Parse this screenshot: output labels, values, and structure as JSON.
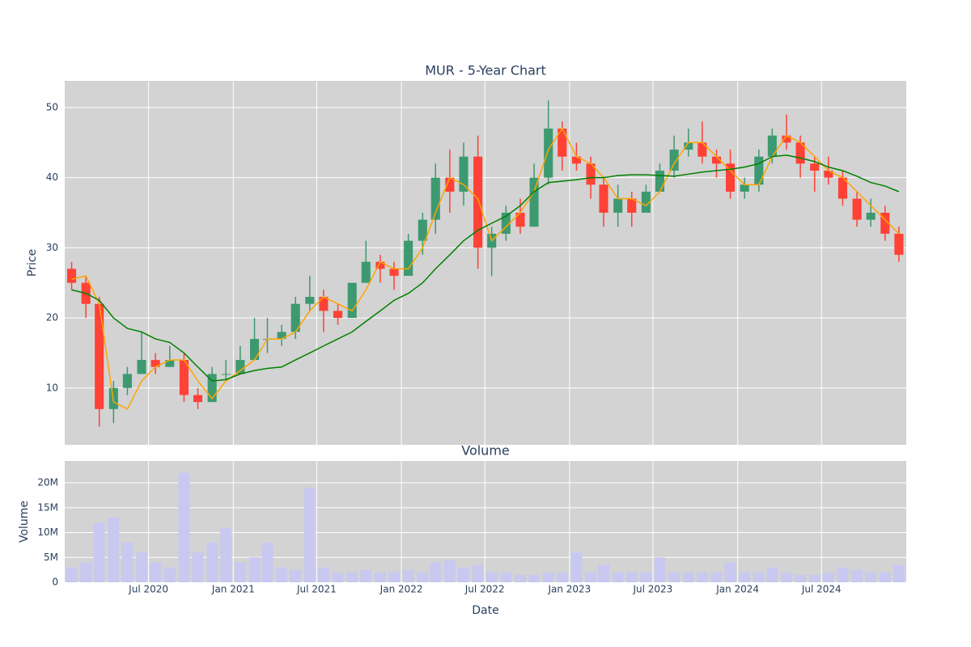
{
  "chart_data": [
    {
      "type": "candlestick",
      "title": "MUR - 5-Year Chart",
      "ylabel": "Price",
      "x": [
        "2020-01",
        "2020-02",
        "2020-03",
        "2020-04",
        "2020-05",
        "2020-06",
        "2020-07",
        "2020-08",
        "2020-09",
        "2020-10",
        "2020-11",
        "2020-12",
        "2021-01",
        "2021-02",
        "2021-03",
        "2021-04",
        "2021-05",
        "2021-06",
        "2021-07",
        "2021-08",
        "2021-09",
        "2021-10",
        "2021-11",
        "2021-12",
        "2022-01",
        "2022-02",
        "2022-03",
        "2022-04",
        "2022-05",
        "2022-06",
        "2022-07",
        "2022-08",
        "2022-09",
        "2022-10",
        "2022-11",
        "2022-12",
        "2023-01",
        "2023-02",
        "2023-03",
        "2023-04",
        "2023-05",
        "2023-06",
        "2023-07",
        "2023-08",
        "2023-09",
        "2023-10",
        "2023-11",
        "2023-12",
        "2024-01",
        "2024-02",
        "2024-03",
        "2024-04",
        "2024-05",
        "2024-06",
        "2024-07",
        "2024-08",
        "2024-09",
        "2024-10",
        "2024-11",
        "2024-12"
      ],
      "open": [
        27,
        25,
        22,
        7,
        10,
        12,
        14,
        13,
        14,
        9,
        8,
        12,
        12,
        14,
        17,
        17,
        18,
        22,
        23,
        21,
        20,
        25,
        28,
        27,
        26,
        31,
        34,
        40,
        38,
        43,
        30,
        32,
        35,
        33,
        40,
        47,
        43,
        42,
        39,
        35,
        37,
        35,
        38,
        41,
        44,
        45,
        43,
        42,
        38,
        39,
        43,
        46,
        45,
        42,
        41,
        40,
        37,
        34,
        35,
        32
      ],
      "high": [
        28,
        26,
        23,
        11,
        13,
        18,
        15,
        16,
        15,
        10,
        13,
        14,
        16,
        20,
        20,
        19,
        23,
        26,
        24,
        22,
        25,
        31,
        29,
        28,
        32,
        35,
        42,
        44,
        45,
        46,
        33,
        36,
        37,
        42,
        51,
        48,
        45,
        43,
        40,
        39,
        38,
        39,
        42,
        46,
        47,
        48,
        44,
        44,
        40,
        44,
        47,
        49,
        46,
        43,
        43,
        41,
        38,
        37,
        36,
        33
      ],
      "low": [
        24,
        20,
        4.5,
        5,
        9,
        12,
        12,
        13,
        8,
        7,
        8,
        11,
        12,
        14,
        15,
        16,
        17,
        21,
        18,
        19,
        20,
        25,
        25,
        24,
        26,
        29,
        32,
        35,
        36,
        27,
        26,
        31,
        32,
        33,
        39,
        41,
        41,
        37,
        33,
        33,
        33,
        35,
        38,
        40,
        43,
        42,
        40,
        37,
        37,
        38,
        42,
        44,
        40,
        38,
        39,
        36,
        33,
        33,
        31,
        28
      ],
      "close": [
        25,
        22,
        7,
        10,
        12,
        14,
        13,
        14,
        9,
        8,
        12,
        12,
        14,
        17,
        17,
        18,
        22,
        23,
        21,
        20,
        25,
        28,
        27,
        26,
        31,
        34,
        40,
        38,
        43,
        30,
        32,
        35,
        33,
        40,
        47,
        43,
        42,
        39,
        35,
        37,
        35,
        38,
        41,
        44,
        45,
        43,
        42,
        38,
        39,
        43,
        46,
        45,
        42,
        41,
        40,
        37,
        34,
        35,
        32,
        29
      ],
      "increasing_color": "#3d9970",
      "decreasing_color": "#ff4136",
      "lines": [
        {
          "color": "#ffa500",
          "values": [
            25.5,
            26,
            22,
            8,
            7,
            11,
            13,
            14,
            14,
            11,
            8.5,
            11,
            12.5,
            14,
            17,
            17,
            18,
            21,
            23,
            22,
            21,
            24,
            28,
            27,
            27,
            30,
            35,
            40,
            39,
            37,
            31,
            33,
            35,
            38,
            44,
            47,
            43,
            42,
            40,
            37,
            37,
            36,
            38,
            42,
            45,
            45,
            43,
            41,
            39,
            39,
            43,
            46,
            45,
            43,
            41,
            40,
            38,
            36,
            34,
            32
          ]
        },
        {
          "color": "#008000",
          "values": [
            24,
            23.5,
            22.5,
            20,
            18.5,
            18,
            17,
            16.5,
            15,
            13,
            11,
            11.2,
            12,
            12.5,
            12.8,
            13,
            14,
            15,
            16,
            17,
            18,
            19.5,
            21,
            22.5,
            23.5,
            25,
            27,
            29,
            31,
            32.5,
            33.5,
            34.5,
            36,
            38,
            39.3,
            39.5,
            39.7,
            40,
            40,
            40.3,
            40.4,
            40.4,
            40.3,
            40.2,
            40.5,
            40.8,
            41,
            41.2,
            41.5,
            42,
            43,
            43.2,
            42.8,
            42.3,
            41.5,
            41,
            40.2,
            39.3,
            38.8,
            38
          ]
        }
      ],
      "xlim": [
        "2020-01",
        "2025-01"
      ],
      "ylim": [
        1.9,
        53.8
      ],
      "yticks": [
        10,
        20,
        30,
        40,
        50
      ],
      "grid": true,
      "background": "#d3d3d3"
    },
    {
      "type": "bar",
      "title": "Volume",
      "ylabel": "Volume",
      "xlabel": "Date",
      "x": [
        "2020-01",
        "2020-02",
        "2020-03",
        "2020-04",
        "2020-05",
        "2020-06",
        "2020-07",
        "2020-08",
        "2020-09",
        "2020-10",
        "2020-11",
        "2020-12",
        "2021-01",
        "2021-02",
        "2021-03",
        "2021-04",
        "2021-05",
        "2021-06",
        "2021-07",
        "2021-08",
        "2021-09",
        "2021-10",
        "2021-11",
        "2021-12",
        "2022-01",
        "2022-02",
        "2022-03",
        "2022-04",
        "2022-05",
        "2022-06",
        "2022-07",
        "2022-08",
        "2022-09",
        "2022-10",
        "2022-11",
        "2022-12",
        "2023-01",
        "2023-02",
        "2023-03",
        "2023-04",
        "2023-05",
        "2023-06",
        "2023-07",
        "2023-08",
        "2023-09",
        "2023-10",
        "2023-11",
        "2023-12",
        "2024-01",
        "2024-02",
        "2024-03",
        "2024-04",
        "2024-05",
        "2024-06",
        "2024-07",
        "2024-08",
        "2024-09",
        "2024-10",
        "2024-11",
        "2024-12"
      ],
      "values": [
        3000000,
        4000000,
        12000000,
        13000000,
        8000000,
        6000000,
        4000000,
        3000000,
        22000000,
        6000000,
        8000000,
        11000000,
        4000000,
        5000000,
        8000000,
        3000000,
        2500000,
        19000000,
        3000000,
        2000000,
        2000000,
        2500000,
        2000000,
        2000000,
        2500000,
        2000000,
        4000000,
        4500000,
        3000000,
        3500000,
        2000000,
        2000000,
        1500000,
        1500000,
        2000000,
        2000000,
        6000000,
        2000000,
        3500000,
        2000000,
        2000000,
        2000000,
        5000000,
        2000000,
        2000000,
        2000000,
        2000000,
        4000000,
        2000000,
        2000000,
        3000000,
        2000000,
        1500000,
        1500000,
        2000000,
        3000000,
        2500000,
        2000000,
        2000000,
        3500000
      ],
      "color": "#c8c8f0",
      "xlim": [
        "2020-01",
        "2025-01"
      ],
      "xticks": [
        {
          "value": "2020-07",
          "label": "Jul 2020"
        },
        {
          "value": "2021-01",
          "label": "Jan 2021"
        },
        {
          "value": "2021-07",
          "label": "Jul 2021"
        },
        {
          "value": "2022-01",
          "label": "Jan 2022"
        },
        {
          "value": "2022-07",
          "label": "Jul 2022"
        },
        {
          "value": "2023-01",
          "label": "Jan 2023"
        },
        {
          "value": "2023-07",
          "label": "Jul 2023"
        },
        {
          "value": "2024-01",
          "label": "Jan 2024"
        },
        {
          "value": "2024-07",
          "label": "Jul 2024"
        }
      ],
      "ylim": [
        0,
        24400000
      ],
      "yticks": [
        0,
        {
          "value": 5000000,
          "label": "5M"
        },
        {
          "value": 10000000,
          "label": "10M"
        },
        {
          "value": 15000000,
          "label": "15M"
        },
        {
          "value": 20000000,
          "label": "20M"
        }
      ],
      "grid": true,
      "background": "#d3d3d3"
    }
  ]
}
